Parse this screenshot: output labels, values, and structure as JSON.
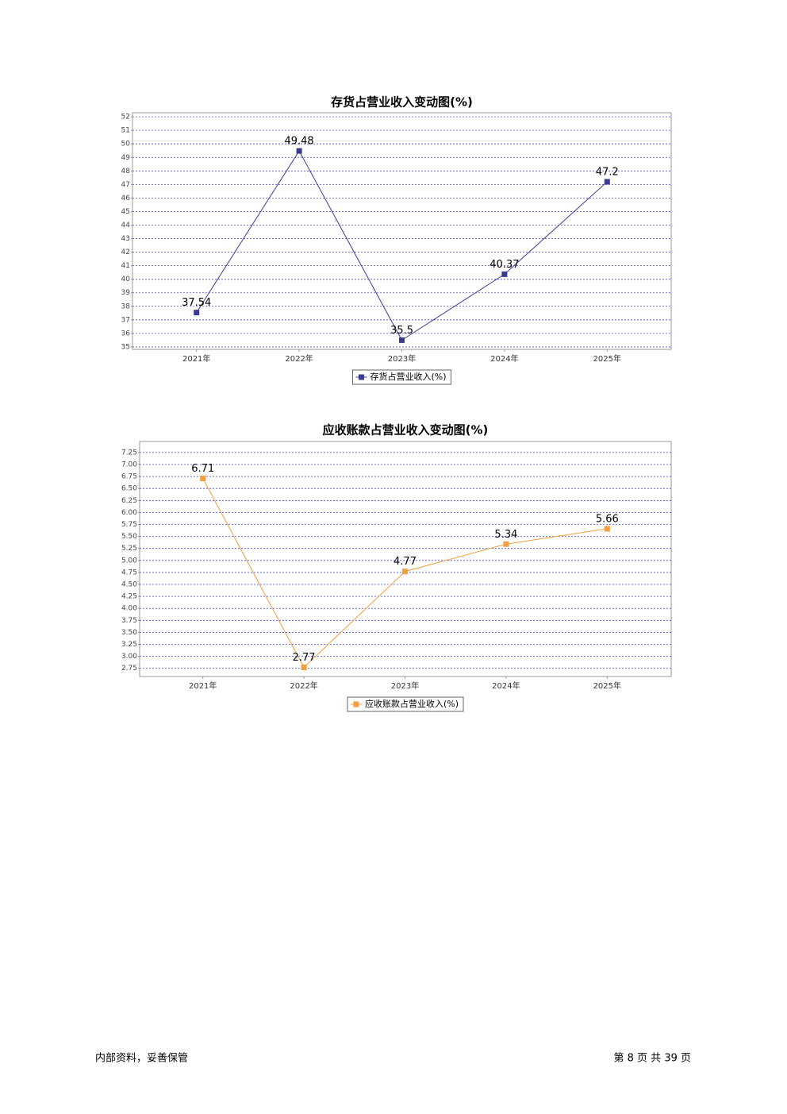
{
  "chart_data": [
    {
      "type": "line",
      "title": "存货占营业收入变动图(%)",
      "categories": [
        "2021年",
        "2022年",
        "2023年",
        "2024年",
        "2025年"
      ],
      "series": [
        {
          "name": "存货占营业收入(%)",
          "color": "#3b3b8f",
          "values": [
            37.54,
            49.48,
            35.5,
            40.37,
            47.2
          ]
        }
      ],
      "ylim": [
        34.82,
        52.3
      ],
      "yticks": [
        35,
        36,
        37,
        38,
        39,
        40,
        41,
        42,
        43,
        44,
        45,
        46,
        47,
        48,
        49,
        50,
        51,
        52
      ],
      "grid": true
    },
    {
      "type": "line",
      "title": "应收账款占营业收入变动图(%)",
      "categories": [
        "2021年",
        "2022年",
        "2023年",
        "2024年",
        "2025年"
      ],
      "series": [
        {
          "name": "应收账款占营业收入(%)",
          "color": "#f0a040",
          "values": [
            6.71,
            2.77,
            4.77,
            5.34,
            5.66
          ]
        }
      ],
      "ylim": [
        2.58,
        7.48
      ],
      "yticks": [
        2.75,
        {
          "value": 3,
          "label": "3.00"
        },
        3.25,
        {
          "value": 3.5,
          "label": "3.50"
        },
        3.75,
        {
          "value": 4,
          "label": "4.00"
        },
        4.25,
        {
          "value": 4.5,
          "label": "4.50"
        },
        4.75,
        {
          "value": 5,
          "label": "5.00"
        },
        5.25,
        {
          "value": 5.5,
          "label": "5.50"
        },
        5.75,
        {
          "value": 6,
          "label": "6.00"
        },
        6.25,
        {
          "value": 6.5,
          "label": "6.50"
        },
        6.75,
        {
          "value": 7,
          "label": "7.00"
        },
        7.25
      ],
      "grid": true
    }
  ],
  "footer": {
    "left": "内部资料，妥善保管",
    "right": "第 8 页  共 39 页"
  }
}
